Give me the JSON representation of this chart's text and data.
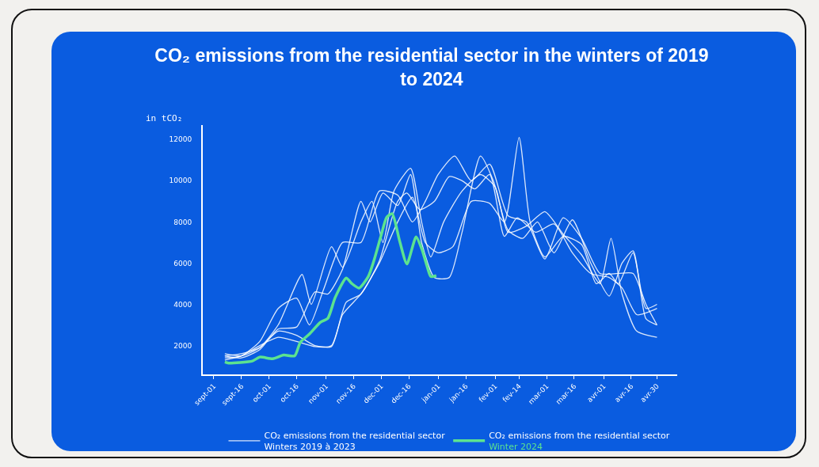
{
  "chart_data": {
    "type": "line",
    "title": "CO₂ emissions from the residential sector in the winters of 2019 to 2024",
    "ylabel": "in tCO₂",
    "xlim": [
      "2018-08-26",
      "2019-05-11"
    ],
    "ylim": [
      600,
      12700
    ],
    "xticks": [
      {
        "value": "2018-09-01",
        "label": "sept-01"
      },
      {
        "value": "2018-09-16",
        "label": "sept-16"
      },
      {
        "value": "2018-10-01",
        "label": "oct-01"
      },
      {
        "value": "2018-10-16",
        "label": "oct-16"
      },
      {
        "value": "2018-11-01",
        "label": "nov-01"
      },
      {
        "value": "2018-11-16",
        "label": "nov-16"
      },
      {
        "value": "2018-12-01",
        "label": "dec-01"
      },
      {
        "value": "2018-12-16",
        "label": "dec-16"
      },
      {
        "value": "2019-01-01",
        "label": "jan-01"
      },
      {
        "value": "2019-01-16",
        "label": "jan-16"
      },
      {
        "value": "2019-02-01",
        "label": "fev-01"
      },
      {
        "value": "2019-02-14",
        "label": "fev-14"
      },
      {
        "value": "2019-03-01",
        "label": "mar-01"
      },
      {
        "value": "2019-03-16",
        "label": "mar-16"
      },
      {
        "value": "2019-04-01",
        "label": "avr-01"
      },
      {
        "value": "2019-04-16",
        "label": "avr-16"
      },
      {
        "value": "2019-04-30",
        "label": "avr-30"
      }
    ],
    "yticks": [
      2000,
      4000,
      6000,
      8000,
      10000,
      12000
    ],
    "grid": false,
    "legend": "bottom",
    "marker": "none",
    "line_style": "solid",
    "series": [
      {
        "name": "CO₂ emissions from the residential sector\nWinters 2019 à 2023",
        "color": "#ffffff",
        "x": [
          "2018-09-07",
          "2018-09-16",
          "2018-09-26",
          "2018-10-06",
          "2018-10-16",
          "2018-10-26",
          "2018-11-04",
          "2018-11-10",
          "2018-11-20",
          "2018-11-30",
          "2018-12-10",
          "2018-12-18",
          "2018-12-25",
          "2019-01-01",
          "2019-01-09",
          "2019-01-19",
          "2019-01-29",
          "2019-02-06",
          "2019-02-14",
          "2019-02-20",
          "2019-02-28",
          "2019-03-10",
          "2019-03-20",
          "2019-03-28",
          "2019-04-04",
          "2019-04-09",
          "2019-04-17",
          "2019-04-24",
          "2019-04-30"
        ],
        "values": [
          1500,
          1600,
          1900,
          2700,
          2500,
          2000,
          1950,
          3500,
          4500,
          6000,
          8000,
          9200,
          7000,
          6500,
          6800,
          9000,
          8900,
          8000,
          12100,
          8000,
          6300,
          7300,
          6900,
          5000,
          5500,
          5000,
          6500,
          3800,
          4000
        ]
      },
      {
        "color": "#ffffff",
        "x": [
          "2018-09-07",
          "2018-09-16",
          "2018-09-26",
          "2018-10-06",
          "2018-10-16",
          "2018-10-23",
          "2018-10-31",
          "2018-11-10",
          "2018-11-20",
          "2018-11-30",
          "2018-12-10",
          "2018-12-18",
          "2018-12-25",
          "2019-01-01",
          "2019-01-10",
          "2019-01-19",
          "2019-01-29",
          "2019-02-08",
          "2019-02-18",
          "2019-02-28",
          "2019-03-10",
          "2019-03-20",
          "2019-03-30",
          "2019-04-09",
          "2019-04-17",
          "2019-04-24",
          "2019-04-30"
        ],
        "values": [
          1400,
          1500,
          2200,
          3800,
          4300,
          3000,
          4800,
          7000,
          7000,
          9500,
          9300,
          8000,
          9000,
          10300,
          11200,
          10000,
          10800,
          8300,
          8000,
          6200,
          8200,
          7200,
          5500,
          5500,
          5500,
          4000,
          3000
        ]
      },
      {
        "color": "#ffffff",
        "x": [
          "2018-09-07",
          "2018-09-16",
          "2018-09-26",
          "2018-10-06",
          "2018-10-19",
          "2018-10-24",
          "2018-11-04",
          "2018-11-10",
          "2018-11-20",
          "2018-11-26",
          "2018-12-02",
          "2018-12-08",
          "2018-12-17",
          "2018-12-23",
          "2018-12-28",
          "2019-01-04",
          "2019-01-14",
          "2019-01-24",
          "2019-02-01",
          "2019-02-08",
          "2019-02-18",
          "2019-02-28",
          "2019-03-10",
          "2019-03-20",
          "2019-03-30",
          "2019-04-05",
          "2019-04-11",
          "2019-04-19",
          "2019-04-30"
        ],
        "values": [
          1600,
          1500,
          1900,
          3000,
          5450,
          4000,
          6800,
          5800,
          8000,
          9000,
          7000,
          9500,
          10600,
          8000,
          6300,
          8000,
          9500,
          10300,
          9700,
          7500,
          7800,
          8500,
          7400,
          6400,
          5000,
          7200,
          4500,
          2700,
          2400
        ]
      },
      {
        "color": "#ffffff",
        "x": [
          "2018-09-07",
          "2018-09-16",
          "2018-09-26",
          "2018-10-06",
          "2018-10-16",
          "2018-10-26",
          "2018-11-02",
          "2018-11-10",
          "2018-11-20",
          "2018-11-25",
          "2018-12-02",
          "2018-12-10",
          "2018-12-17",
          "2018-12-23",
          "2018-12-30",
          "2019-01-07",
          "2019-01-14",
          "2019-01-24",
          "2019-01-31",
          "2019-02-08",
          "2019-02-16",
          "2019-02-24",
          "2019-03-05",
          "2019-03-15",
          "2019-03-25",
          "2019-04-04",
          "2019-04-11",
          "2019-04-17",
          "2019-04-24",
          "2019-04-30"
        ],
        "values": [
          1500,
          1400,
          1800,
          2800,
          2900,
          4600,
          4500,
          5700,
          9000,
          8000,
          9400,
          8800,
          10300,
          7000,
          5300,
          5300,
          7500,
          11200,
          10000,
          7600,
          7200,
          8000,
          6500,
          8100,
          6000,
          4400,
          6000,
          6600,
          3300,
          3000
        ]
      },
      {
        "color": "#ffffff",
        "x": [
          "2018-09-07",
          "2018-09-16",
          "2018-09-26",
          "2018-10-06",
          "2018-10-16",
          "2018-10-26",
          "2018-11-04",
          "2018-11-12",
          "2018-11-20",
          "2018-11-30",
          "2018-12-10",
          "2018-12-15",
          "2018-12-22",
          "2018-12-30",
          "2019-01-07",
          "2019-01-14",
          "2019-01-21",
          "2019-01-29",
          "2019-02-06",
          "2019-02-13",
          "2019-02-23",
          "2019-03-05",
          "2019-03-15",
          "2019-03-25",
          "2019-04-04",
          "2019-04-11",
          "2019-04-19",
          "2019-04-30"
        ],
        "values": [
          1300,
          1500,
          2000,
          2400,
          2200,
          1950,
          2000,
          4100,
          4500,
          6100,
          9000,
          9400,
          8600,
          9000,
          10200,
          10000,
          9600,
          10300,
          7300,
          8200,
          7500,
          7900,
          6500,
          5500,
          5300,
          4800,
          3500,
          3800
        ]
      },
      {
        "name": "CO₂ emissions from the residential sector\nWinter 2024",
        "color": "#5ce38f",
        "x": [
          "2018-09-07",
          "2018-09-09",
          "2018-09-22",
          "2018-09-26",
          "2018-10-03",
          "2018-10-09",
          "2018-10-15",
          "2018-10-18",
          "2018-10-23",
          "2018-10-29",
          "2018-11-02",
          "2018-11-06",
          "2018-11-12",
          "2018-11-15",
          "2018-11-19",
          "2018-11-24",
          "2018-11-27",
          "2018-12-01",
          "2018-12-04",
          "2018-12-07",
          "2018-12-11",
          "2018-12-15",
          "2018-12-20",
          "2018-12-23",
          "2018-12-26",
          "2018-12-28",
          "2018-12-31"
        ],
        "values": [
          1200,
          1150,
          1250,
          1440,
          1360,
          1540,
          1500,
          2150,
          2560,
          3130,
          3320,
          4330,
          5280,
          5010,
          4790,
          5350,
          6100,
          7350,
          8220,
          8400,
          7090,
          5960,
          7270,
          6710,
          5840,
          5350,
          5390
        ]
      }
    ]
  }
}
